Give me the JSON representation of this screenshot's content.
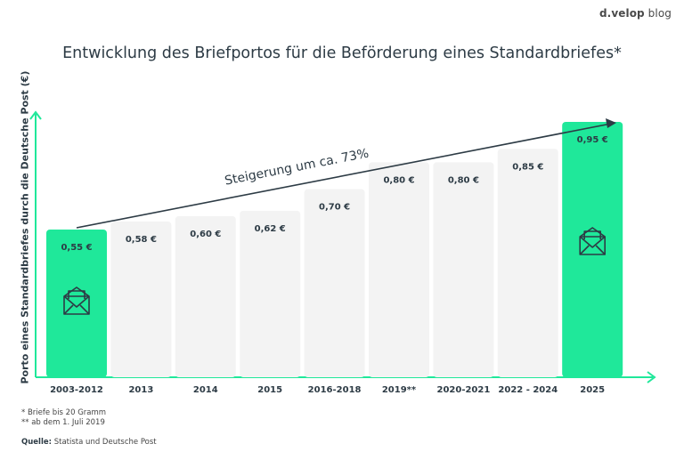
{
  "brand": {
    "part1": "d.",
    "part2": "velop",
    "part3": " blog"
  },
  "chart_data": {
    "type": "bar",
    "title": "Entwicklung des Briefportos für die Beförderung eines Standardbriefes*",
    "ylabel": "Porto eines Standardbriefes durch die Deutsche Post (€)",
    "xlabel": "",
    "categories": [
      "2003-2012",
      "2013",
      "2014",
      "2015",
      "2016-2018",
      "2019**",
      "2020-2021",
      "2022 - 2024",
      "2025"
    ],
    "values": [
      0.55,
      0.58,
      0.6,
      0.62,
      0.7,
      0.8,
      0.8,
      0.85,
      0.95
    ],
    "value_labels": [
      "0,55 €",
      "0,58 €",
      "0,60 €",
      "0,62 €",
      "0,70 €",
      "0,80 €",
      "0,80 €",
      "0,85 €",
      "0,95 €"
    ],
    "highlighted": [
      "2003-2012",
      "2025"
    ],
    "annotation": "Steigerung um ca. 73%",
    "colors": {
      "highlight": "#1fe89a",
      "bar": "#f3f3f3",
      "axis": "#1fe89a",
      "text": "#2d3b45",
      "arrow": "#2d3b45"
    }
  },
  "footnotes": [
    "* Briefe bis 20 Gramm",
    "** ab dem 1. Juli 2019"
  ],
  "source": {
    "label": "Quelle:",
    "text": " Statista und Deutsche Post"
  },
  "icons": [
    "envelope-icon"
  ]
}
